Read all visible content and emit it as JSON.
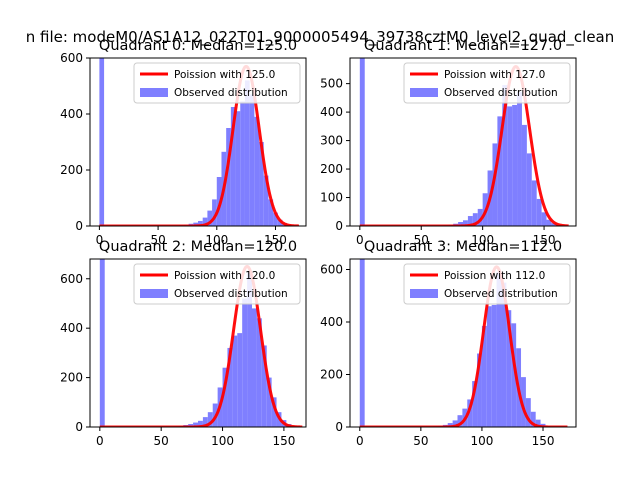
{
  "figure": {
    "suptitle": "n file: modeM0/AS1A12_022T01_9000005494_39738cztM0_level2_quad_clean",
    "colors": {
      "fit": "#ff0000",
      "hist": "#7f7fff",
      "axis": "#000000",
      "bg": "#ffffff"
    }
  },
  "chart_data": [
    {
      "type": "bar",
      "title": "Quadrant 0: Median=125.0",
      "xlabel": "",
      "ylabel": "",
      "xlim": [
        -8,
        176
      ],
      "ylim": [
        0,
        600
      ],
      "xticks": [
        0,
        50,
        100,
        150
      ],
      "yticks": [
        0,
        200,
        400,
        600
      ],
      "zero_bin_count": 600,
      "bin_width": 4,
      "bin_starts": [
        60,
        64,
        68,
        72,
        76,
        80,
        84,
        88,
        92,
        96,
        100,
        104,
        108,
        112,
        116,
        120,
        124,
        128,
        132,
        136,
        140,
        144,
        148,
        152,
        156,
        160,
        164
      ],
      "values": [
        2,
        2,
        3,
        5,
        8,
        12,
        18,
        30,
        55,
        95,
        175,
        265,
        350,
        425,
        410,
        445,
        520,
        470,
        390,
        300,
        180,
        95,
        48,
        22,
        10,
        4,
        2
      ],
      "fit": {
        "label": "Poission with 125.0",
        "mean": 125.0,
        "peak": 570,
        "x_range": [
          0,
          170
        ]
      },
      "legend": {
        "fit_label": "Poission with 125.0",
        "hist_label": "Observed distribution",
        "position": "top-right"
      }
    },
    {
      "type": "bar",
      "title": "Quadrant 1: Median=127.0",
      "xlabel": "",
      "ylabel": "",
      "xlim": [
        -8,
        176
      ],
      "ylim": [
        0,
        590
      ],
      "xticks": [
        0,
        50,
        100,
        150
      ],
      "yticks": [
        0,
        100,
        200,
        300,
        400,
        500
      ],
      "zero_bin_count": 590,
      "bin_width": 4,
      "bin_starts": [
        64,
        68,
        72,
        76,
        80,
        84,
        88,
        92,
        96,
        100,
        104,
        108,
        112,
        116,
        120,
        124,
        128,
        132,
        136,
        140,
        144,
        148,
        152,
        156,
        160,
        164
      ],
      "values": [
        2,
        3,
        5,
        8,
        14,
        20,
        35,
        45,
        60,
        115,
        195,
        290,
        385,
        495,
        420,
        425,
        470,
        355,
        255,
        160,
        95,
        48,
        22,
        10,
        4,
        2
      ],
      "fit": {
        "label": "Poission with 127.0",
        "mean": 127.0,
        "peak": 560,
        "x_range": [
          0,
          170
        ]
      },
      "legend": {
        "fit_label": "Poission with 127.0",
        "hist_label": "Observed distribution",
        "position": "top-right"
      }
    },
    {
      "type": "bar",
      "title": "Quadrant 2: Median=120.0",
      "xlabel": "",
      "ylabel": "",
      "xlim": [
        -8,
        168
      ],
      "ylim": [
        0,
        680
      ],
      "xticks": [
        0,
        50,
        100,
        150
      ],
      "yticks": [
        0,
        200,
        400,
        600
      ],
      "zero_bin_count": 680,
      "bin_width": 4,
      "bin_starts": [
        60,
        64,
        68,
        72,
        76,
        80,
        84,
        88,
        92,
        96,
        100,
        104,
        108,
        112,
        116,
        120,
        124,
        128,
        132,
        136,
        140,
        144,
        148,
        152,
        156
      ],
      "values": [
        3,
        5,
        8,
        12,
        18,
        25,
        40,
        60,
        95,
        160,
        240,
        320,
        370,
        380,
        520,
        625,
        480,
        440,
        330,
        200,
        120,
        60,
        28,
        12,
        4
      ],
      "fit": {
        "label": "Poission with 120.0",
        "mean": 120.0,
        "peak": 650,
        "x_range": [
          0,
          165
        ]
      },
      "legend": {
        "fit_label": "Poission with 120.0",
        "hist_label": "Observed distribution",
        "position": "top-right"
      }
    },
    {
      "type": "bar",
      "title": "Quadrant 3: Median=112.0",
      "xlabel": "",
      "ylabel": "",
      "xlim": [
        -8,
        177
      ],
      "ylim": [
        0,
        640
      ],
      "xticks": [
        0,
        50,
        100,
        150
      ],
      "yticks": [
        0,
        200,
        400,
        600
      ],
      "zero_bin_count": 640,
      "bin_width": 4,
      "bin_starts": [
        56,
        60,
        64,
        68,
        72,
        76,
        80,
        84,
        88,
        92,
        96,
        100,
        104,
        108,
        112,
        116,
        120,
        124,
        128,
        132,
        136,
        140,
        144,
        148,
        152
      ],
      "values": [
        2,
        3,
        5,
        8,
        15,
        25,
        45,
        70,
        105,
        175,
        280,
        385,
        460,
        465,
        590,
        550,
        445,
        395,
        300,
        190,
        110,
        58,
        28,
        12,
        4
      ],
      "fit": {
        "label": "Poission with 112.0",
        "mean": 112.0,
        "peak": 610,
        "x_range": [
          0,
          170
        ]
      },
      "legend": {
        "fit_label": "Poission with 112.0",
        "hist_label": "Observed distribution",
        "position": "top-right"
      }
    }
  ]
}
